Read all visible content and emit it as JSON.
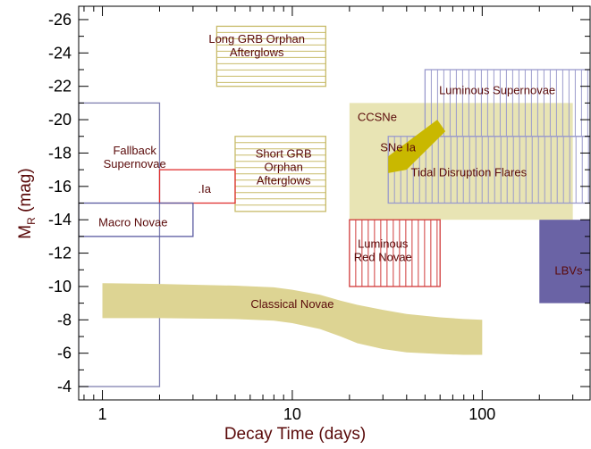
{
  "chart_data": {
    "type": "other",
    "xlabel": "Decay Time (days)",
    "ylabel": {
      "main": "M",
      "sub": "R",
      "unit": " (mag)"
    },
    "xscale": "log",
    "xlim": [
      0.75,
      370
    ],
    "ylim": [
      -26.8,
      -3.2
    ],
    "y_inverted": true,
    "x_ticks": [
      {
        "value": 1,
        "label": "1"
      },
      {
        "value": 10,
        "label": "10"
      },
      {
        "value": 100,
        "label": "100"
      }
    ],
    "y_ticks": [
      {
        "value": -26,
        "label": "-26"
      },
      {
        "value": -24,
        "label": "-24"
      },
      {
        "value": -22,
        "label": "-22"
      },
      {
        "value": -20,
        "label": "-20"
      },
      {
        "value": -18,
        "label": "-18"
      },
      {
        "value": -16,
        "label": "-16"
      },
      {
        "value": -14,
        "label": "-14"
      },
      {
        "value": -12,
        "label": "-12"
      },
      {
        "value": -10,
        "label": "-10"
      },
      {
        "value": -8,
        "label": "-8"
      },
      {
        "value": -6,
        "label": "-6"
      },
      {
        "value": -4,
        "label": "-4"
      }
    ],
    "regions": [
      {
        "name": "ccsne",
        "label": [
          "CCSNe"
        ],
        "label_at": [
          28,
          -20.1
        ],
        "shape": "rect",
        "x": [
          20,
          300
        ],
        "y": [
          -21.0,
          -14.0
        ],
        "fill": "#e8e4b4",
        "stroke": "none"
      },
      {
        "name": "luminous-supernovae",
        "label": [
          "Luminous Supernovae"
        ],
        "label_at": [
          120,
          -21.7
        ],
        "shape": "rect",
        "x": [
          50,
          370
        ],
        "y": [
          -23.0,
          -19.0
        ],
        "fill": "none",
        "stroke": "#9a9acc",
        "hatch": "vertical",
        "hatch_spacing": 7
      },
      {
        "name": "tidal-disruption-flares",
        "label": [
          "Tidal Disruption Flares"
        ],
        "label_at": [
          85,
          -16.8
        ],
        "shape": "rect",
        "x": [
          32,
          370
        ],
        "y": [
          -19.0,
          -15.0
        ],
        "fill": "none",
        "stroke": "#9a9acc",
        "hatch": "vertical",
        "hatch_spacing": 7
      },
      {
        "name": "sne-ia",
        "label": [
          "SNe Ia"
        ],
        "label_at": [
          36,
          -18.3
        ],
        "shape": "polygon",
        "points": [
          [
            32,
            -17.8
          ],
          [
            58,
            -20.0
          ],
          [
            64,
            -19.3
          ],
          [
            40,
            -17.0
          ],
          [
            32,
            -16.8
          ]
        ],
        "fill": "#c9b800",
        "stroke": "none"
      },
      {
        "name": "long-grb-orphan-afterglows",
        "label": [
          "Long GRB Orphan",
          "Afterglows"
        ],
        "label_at": [
          6.5,
          -24.4
        ],
        "shape": "rect",
        "x": [
          4,
          15
        ],
        "y": [
          -25.6,
          -22.0
        ],
        "fill": "none",
        "stroke": "#c8bb6a",
        "hatch": "horizontal",
        "hatch_spacing": 7
      },
      {
        "name": "short-grb-orphan-afterglows",
        "label": [
          "Short GRB",
          "Orphan",
          "Afterglows"
        ],
        "label_at": [
          9,
          -17.1
        ],
        "shape": "rect",
        "x": [
          5,
          15
        ],
        "y": [
          -19.0,
          -14.5
        ],
        "fill": "none",
        "stroke": "#c8bb6a",
        "hatch": "horizontal",
        "hatch_spacing": 7
      },
      {
        "name": "fallback-supernovae",
        "label": [
          "Fallback",
          "Supernovae"
        ],
        "label_at": [
          1.48,
          -17.7
        ],
        "shape": "rect",
        "x": [
          0.75,
          2
        ],
        "y": [
          -21.0,
          -4.0
        ],
        "fill": "none",
        "stroke": "#8080b0"
      },
      {
        "name": "point-ia",
        "label": [
          ".Ia"
        ],
        "label_at": [
          3.45,
          -15.8
        ],
        "shape": "rect",
        "x": [
          2,
          5
        ],
        "y": [
          -17.0,
          -15.0
        ],
        "fill": "none",
        "stroke": "#e03030"
      },
      {
        "name": "macro-novae",
        "label": [
          "Macro Novae"
        ],
        "label_at": [
          1.45,
          -13.8
        ],
        "shape": "rect",
        "x": [
          0.75,
          3
        ],
        "y": [
          -15.0,
          -13.0
        ],
        "fill": "none",
        "stroke": "#5a5aa0"
      },
      {
        "name": "luminous-red-novae",
        "label": [
          "Luminous",
          "Red Novae"
        ],
        "label_at": [
          30,
          -12.1
        ],
        "shape": "rect",
        "x": [
          20,
          60
        ],
        "y": [
          -14.0,
          -10.0
        ],
        "fill": "none",
        "stroke": "#d03a3a",
        "hatch": "vertical",
        "hatch_spacing": 7
      },
      {
        "name": "lbvs",
        "label": [
          "LBVs"
        ],
        "label_at": [
          285,
          -10.9
        ],
        "shape": "rect",
        "x": [
          200,
          370
        ],
        "y": [
          -14.0,
          -9.0
        ],
        "fill": "#6a63a5",
        "stroke": "none"
      },
      {
        "name": "classical-novae",
        "label": [
          "Classical Novae"
        ],
        "label_at": [
          10,
          -8.9
        ],
        "shape": "band",
        "x": [
          1,
          2,
          5,
          8,
          10,
          14,
          18,
          22,
          30,
          40,
          60,
          80,
          100
        ],
        "y_upper": [
          -10.2,
          -10.15,
          -10.05,
          -9.95,
          -9.8,
          -9.5,
          -9.15,
          -8.9,
          -8.6,
          -8.35,
          -8.15,
          -8.05,
          -8.0
        ],
        "y_lower": [
          -8.1,
          -8.1,
          -8.05,
          -7.95,
          -7.8,
          -7.45,
          -7.0,
          -6.6,
          -6.25,
          -6.05,
          -5.95,
          -5.9,
          -5.9
        ],
        "fill": "#ddd493",
        "stroke": "none"
      }
    ],
    "grid": false,
    "legend": "none"
  }
}
